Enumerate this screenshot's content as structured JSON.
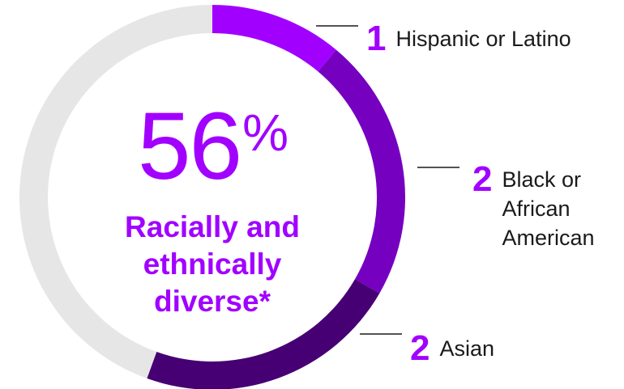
{
  "chart_data": {
    "type": "pie",
    "style": "donut",
    "center_value": "56",
    "center_unit": "%",
    "center_label": [
      "Racially and",
      "ethnically",
      "diverse*"
    ],
    "slices": [
      {
        "count": "1",
        "label": [
          "Hispanic or Latino"
        ],
        "fraction": 0.111,
        "color": "#a100ff"
      },
      {
        "count": "2",
        "label": [
          "Black or",
          "African",
          "American"
        ],
        "fraction": 0.222,
        "color": "#7500c0"
      },
      {
        "count": "2",
        "label": [
          "Asian"
        ],
        "fraction": 0.222,
        "color": "#460073"
      },
      {
        "count": "",
        "label": [],
        "fraction": 0.445,
        "color": "#e6e6e6"
      }
    ]
  },
  "colors": {
    "accent": "#a100ff",
    "text": "#1a1a1a",
    "track": "#e6e6e6"
  }
}
